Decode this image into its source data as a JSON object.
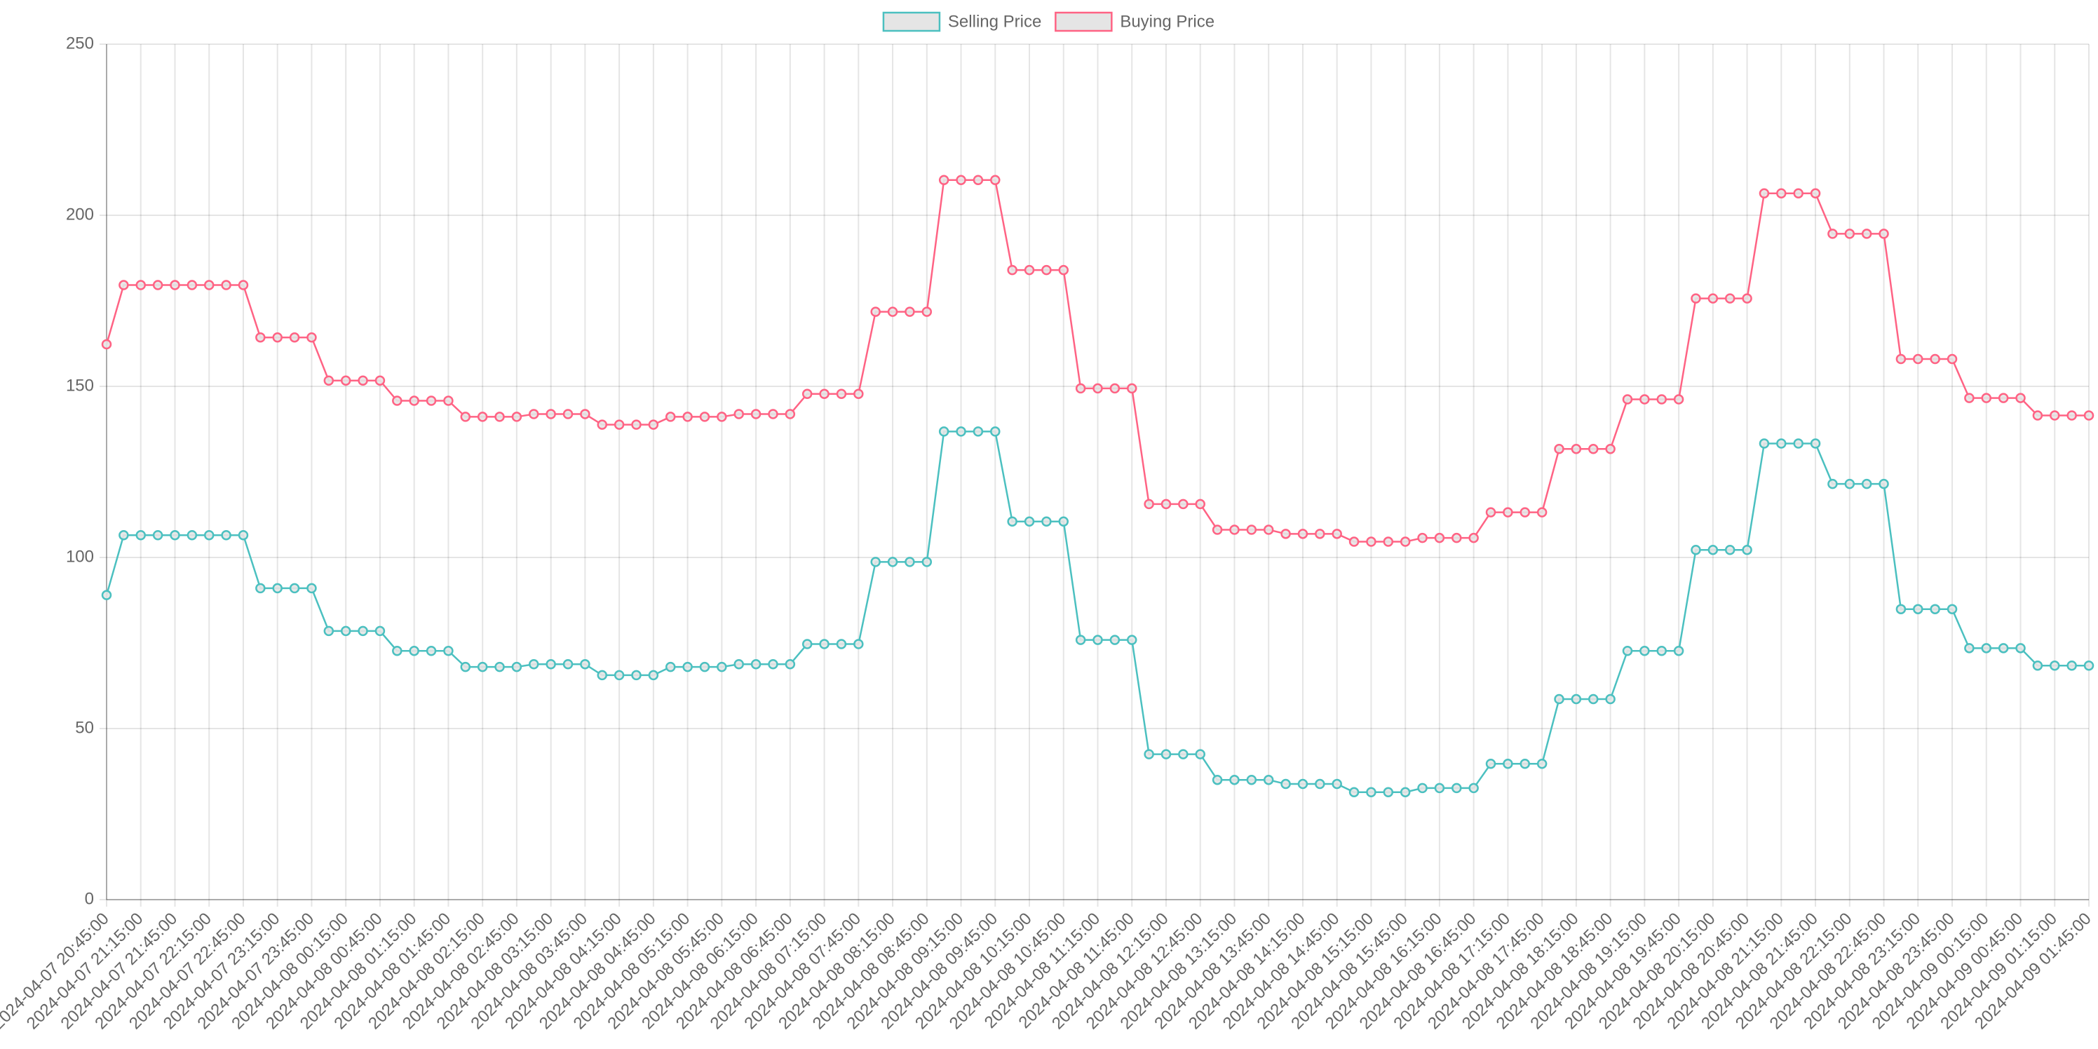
{
  "chart_data": {
    "type": "line",
    "categories": [
      "2024-04-07 20:45:00",
      null,
      "2024-04-07 21:15:00",
      null,
      "2024-04-07 21:45:00",
      null,
      "2024-04-07 22:15:00",
      null,
      "2024-04-07 22:45:00",
      null,
      "2024-04-07 23:15:00",
      null,
      "2024-04-07 23:45:00",
      null,
      "2024-04-08 00:15:00",
      null,
      "2024-04-08 00:45:00",
      null,
      "2024-04-08 01:15:00",
      null,
      "2024-04-08 01:45:00",
      null,
      "2024-04-08 02:15:00",
      null,
      "2024-04-08 02:45:00",
      null,
      "2024-04-08 03:15:00",
      null,
      "2024-04-08 03:45:00",
      null,
      "2024-04-08 04:15:00",
      null,
      "2024-04-08 04:45:00",
      null,
      "2024-04-08 05:15:00",
      null,
      "2024-04-08 05:45:00",
      null,
      "2024-04-08 06:15:00",
      null,
      "2024-04-08 06:45:00",
      null,
      "2024-04-08 07:15:00",
      null,
      "2024-04-08 07:45:00",
      null,
      "2024-04-08 08:15:00",
      null,
      "2024-04-08 08:45:00",
      null,
      "2024-04-08 09:15:00",
      null,
      "2024-04-08 09:45:00",
      null,
      "2024-04-08 10:15:00",
      null,
      "2024-04-08 10:45:00",
      null,
      "2024-04-08 11:15:00",
      null,
      "2024-04-08 11:45:00",
      null,
      "2024-04-08 12:15:00",
      null,
      "2024-04-08 12:45:00",
      null,
      "2024-04-08 13:15:00",
      null,
      "2024-04-08 13:45:00",
      null,
      "2024-04-08 14:15:00",
      null,
      "2024-04-08 14:45:00",
      null,
      "2024-04-08 15:15:00",
      null,
      "2024-04-08 15:45:00",
      null,
      "2024-04-08 16:15:00",
      null,
      "2024-04-08 16:45:00",
      null,
      "2024-04-08 17:15:00",
      null,
      "2024-04-08 17:45:00",
      null,
      "2024-04-08 18:15:00",
      null,
      "2024-04-08 18:45:00",
      null,
      "2024-04-08 19:15:00",
      null,
      "2024-04-08 19:45:00",
      null,
      "2024-04-08 20:15:00",
      null,
      "2024-04-08 20:45:00",
      null,
      "2024-04-08 21:15:00",
      null,
      "2024-04-08 21:45:00",
      null,
      "2024-04-08 22:15:00",
      null,
      "2024-04-08 22:45:00",
      null,
      "2024-04-08 23:15:00",
      null,
      "2024-04-08 23:45:00",
      null,
      "2024-04-09 00:15:00",
      null,
      "2024-04-09 00:45:00",
      null,
      "2024-04-09 01:15:00",
      null,
      "2024-04-09 01:45:00"
    ],
    "series": [
      {
        "name": "Selling Price",
        "color": "#4bc0c0",
        "values": [
          89,
          106.5,
          106.5,
          106.5,
          106.5,
          106.5,
          106.5,
          106.5,
          106.5,
          91,
          91,
          91,
          91,
          78.5,
          78.5,
          78.5,
          78.5,
          72.7,
          72.7,
          72.7,
          72.7,
          68,
          68,
          68,
          68,
          68.8,
          68.8,
          68.8,
          68.8,
          65.6,
          65.6,
          65.6,
          65.6,
          68,
          68,
          68,
          68,
          68.8,
          68.8,
          68.8,
          68.8,
          74.7,
          74.7,
          74.7,
          74.7,
          98.7,
          98.7,
          98.7,
          98.7,
          136.8,
          136.8,
          136.8,
          136.8,
          110.5,
          110.5,
          110.5,
          110.5,
          75.9,
          75.9,
          75.9,
          75.9,
          42.5,
          42.5,
          42.5,
          42.5,
          35,
          35,
          35,
          35,
          33.8,
          33.8,
          33.8,
          33.8,
          31.4,
          31.4,
          31.4,
          31.4,
          32.6,
          32.6,
          32.6,
          32.6,
          39.7,
          39.7,
          39.7,
          39.7,
          58.6,
          58.6,
          58.6,
          58.6,
          72.7,
          72.7,
          72.7,
          72.7,
          102.2,
          102.2,
          102.2,
          102.2,
          133.3,
          133.3,
          133.3,
          133.3,
          121.5,
          121.5,
          121.5,
          121.5,
          84.9,
          84.9,
          84.9,
          84.9,
          73.5,
          73.5,
          73.5,
          73.5,
          68.4,
          68.4,
          68.4,
          68.4
        ]
      },
      {
        "name": "Buying Price",
        "color": "#ff6384",
        "values": [
          162.3,
          179.6,
          179.6,
          179.6,
          179.6,
          179.6,
          179.6,
          179.6,
          179.6,
          164.3,
          164.3,
          164.3,
          164.3,
          151.7,
          151.7,
          151.7,
          151.7,
          145.8,
          145.8,
          145.8,
          145.8,
          141.1,
          141.1,
          141.1,
          141.1,
          141.9,
          141.9,
          141.9,
          141.9,
          138.8,
          138.8,
          138.8,
          138.8,
          141.1,
          141.1,
          141.1,
          141.1,
          141.9,
          141.9,
          141.9,
          141.9,
          147.8,
          147.8,
          147.8,
          147.8,
          171.8,
          171.8,
          171.8,
          171.8,
          210.3,
          210.3,
          210.3,
          210.3,
          184,
          184,
          184,
          184,
          149.4,
          149.4,
          149.4,
          149.4,
          115.6,
          115.6,
          115.6,
          115.6,
          108.1,
          108.1,
          108.1,
          108.1,
          106.9,
          106.9,
          106.9,
          106.9,
          104.6,
          104.6,
          104.6,
          104.6,
          105.7,
          105.7,
          105.7,
          105.7,
          113.2,
          113.2,
          113.2,
          113.2,
          131.7,
          131.7,
          131.7,
          131.7,
          146.2,
          146.2,
          146.2,
          146.2,
          175.7,
          175.7,
          175.7,
          175.7,
          206.4,
          206.4,
          206.4,
          206.4,
          194.6,
          194.6,
          194.6,
          194.6,
          158,
          158,
          158,
          158,
          146.6,
          146.6,
          146.6,
          146.6,
          141.5,
          141.5,
          141.5,
          141.5
        ]
      }
    ],
    "ylim": [
      0,
      250
    ],
    "yticks": [
      0,
      50,
      100,
      150,
      200,
      250
    ],
    "grid": true,
    "legend": "top"
  }
}
